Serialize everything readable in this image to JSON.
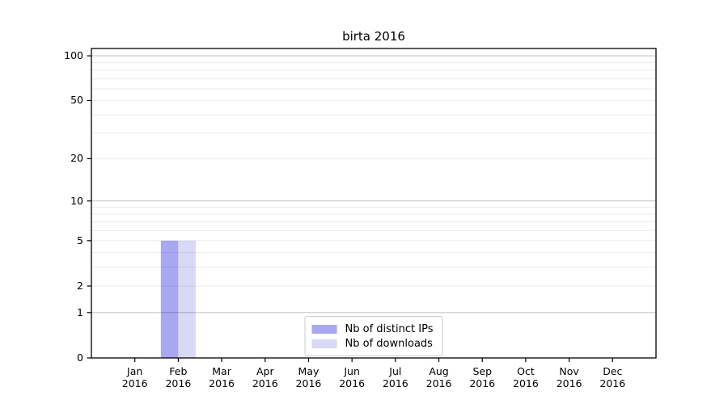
{
  "chart_data": {
    "type": "bar",
    "title": "birta 2016",
    "xlabel": "",
    "ylabel": "",
    "categories": [
      "Jan",
      "Feb",
      "Mar",
      "Apr",
      "May",
      "Jun",
      "Jul",
      "Aug",
      "Sep",
      "Oct",
      "Nov",
      "Dec"
    ],
    "category_year": "2016",
    "series": [
      {
        "name": "Nb of distinct IPs",
        "color": "#a8a8f0",
        "values": [
          0,
          5,
          0,
          0,
          0,
          0,
          0,
          0,
          0,
          0,
          0,
          0
        ]
      },
      {
        "name": "Nb of downloads",
        "color": "#d8d8f7",
        "values": [
          0,
          5,
          0,
          0,
          0,
          0,
          0,
          0,
          0,
          0,
          0,
          0
        ]
      }
    ],
    "y_scale": "log1p",
    "ylim": [
      0,
      112
    ],
    "yticks": [
      0,
      1,
      2,
      5,
      10,
      20,
      50,
      100
    ],
    "grid": {
      "major_lines": [
        1,
        10,
        100
      ],
      "minor_lines": [
        2,
        3,
        4,
        5,
        6,
        7,
        8,
        9,
        20,
        30,
        40,
        50,
        60,
        70,
        80,
        90
      ],
      "major_color": "rgba(0,0,0,0.22)",
      "minor_color": "rgba(0,0,0,0.08)"
    },
    "axis_color": "#000000",
    "legend_position": "bottom-center"
  }
}
